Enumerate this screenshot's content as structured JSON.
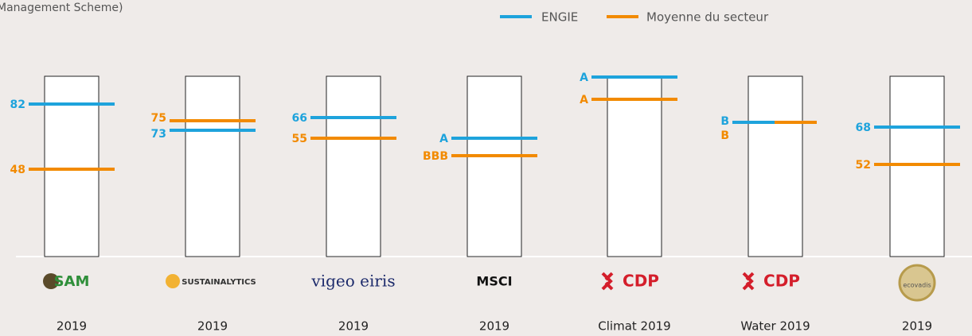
{
  "header": {
    "subtitle": "Management Scheme)"
  },
  "legend": [
    {
      "name": "ENGIE",
      "color": "#1ea3dc"
    },
    {
      "name": "Moyenne du secteur",
      "color": "#f28a00"
    }
  ],
  "columns": [
    {
      "logo": "SAM",
      "caption": "2019",
      "engie": "82",
      "sector": "48"
    },
    {
      "logo": "SUSTAINALYTICS",
      "caption": "2019",
      "engie": "73",
      "sector": "75"
    },
    {
      "logo": "vigeo eiris",
      "caption": "2019",
      "engie": "66",
      "sector": "55"
    },
    {
      "logo": "MSCI",
      "caption": "2019",
      "engie": "A",
      "sector": "BBB"
    },
    {
      "logo": "CDP",
      "caption": "Climat 2019",
      "engie": "A",
      "sector": "A"
    },
    {
      "logo": "CDP",
      "caption": "Water 2019",
      "engie": "B",
      "sector": "B"
    },
    {
      "logo": "ecovadis",
      "caption": "2019",
      "engie": "68",
      "sector": "52"
    }
  ]
}
